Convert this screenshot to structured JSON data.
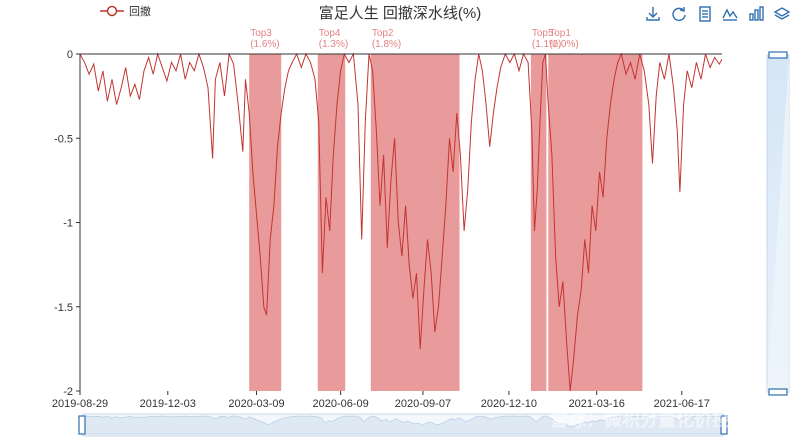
{
  "chart_data": {
    "type": "area",
    "title": "富足人生 回撤深水线(%)",
    "legend": [
      {
        "name": "回撤",
        "color": "#c23531"
      }
    ],
    "legend_position": "top-left",
    "xlabel": "",
    "ylabel": "",
    "x_ticks": [
      "2019-08-29",
      "2019-12-03",
      "2020-03-09",
      "2020-06-09",
      "2020-09-07",
      "2020-12-10",
      "2021-03-16",
      "2021-06-17"
    ],
    "y_ticks": [
      "0",
      "-0.5",
      "-1",
      "-1.5",
      "-2"
    ],
    "ylim": [
      -2,
      0
    ],
    "x_range": [
      "2019-08-29",
      "2021-07-31"
    ],
    "series": [
      {
        "name": "回撤",
        "color": "#c23531",
        "points": [
          [
            "2019-08-29",
            0
          ],
          [
            "2019-09-03",
            -0.05
          ],
          [
            "2019-09-08",
            -0.12
          ],
          [
            "2019-09-13",
            -0.06
          ],
          [
            "2019-09-18",
            -0.22
          ],
          [
            "2019-09-23",
            -0.1
          ],
          [
            "2019-09-28",
            -0.28
          ],
          [
            "2019-10-03",
            -0.15
          ],
          [
            "2019-10-08",
            -0.3
          ],
          [
            "2019-10-13",
            -0.2
          ],
          [
            "2019-10-18",
            -0.08
          ],
          [
            "2019-10-23",
            -0.25
          ],
          [
            "2019-10-28",
            -0.18
          ],
          [
            "2019-11-02",
            -0.27
          ],
          [
            "2019-11-07",
            -0.1
          ],
          [
            "2019-11-12",
            -0.02
          ],
          [
            "2019-11-17",
            -0.12
          ],
          [
            "2019-11-22",
            0
          ],
          [
            "2019-11-27",
            -0.08
          ],
          [
            "2019-12-02",
            -0.16
          ],
          [
            "2019-12-07",
            -0.05
          ],
          [
            "2019-12-12",
            -0.1
          ],
          [
            "2019-12-17",
            0
          ],
          [
            "2019-12-22",
            -0.15
          ],
          [
            "2019-12-27",
            -0.05
          ],
          [
            "2020-01-01",
            -0.1
          ],
          [
            "2020-01-06",
            0
          ],
          [
            "2020-01-11",
            -0.08
          ],
          [
            "2020-01-16",
            -0.2
          ],
          [
            "2020-01-21",
            -0.62
          ],
          [
            "2020-01-24",
            -0.15
          ],
          [
            "2020-01-29",
            -0.05
          ],
          [
            "2020-02-03",
            -0.25
          ],
          [
            "2020-02-08",
            0
          ],
          [
            "2020-02-13",
            -0.06
          ],
          [
            "2020-02-18",
            -0.3
          ],
          [
            "2020-02-23",
            -0.58
          ],
          [
            "2020-02-26",
            -0.15
          ],
          [
            "2020-03-01",
            -0.35
          ],
          [
            "2020-03-05",
            -0.7
          ],
          [
            "2020-03-09",
            -0.95
          ],
          [
            "2020-03-13",
            -1.2
          ],
          [
            "2020-03-17",
            -1.5
          ],
          [
            "2020-03-20",
            -1.55
          ],
          [
            "2020-03-24",
            -1.1
          ],
          [
            "2020-03-28",
            -0.9
          ],
          [
            "2020-04-01",
            -0.55
          ],
          [
            "2020-04-05",
            -0.35
          ],
          [
            "2020-04-09",
            -0.2
          ],
          [
            "2020-04-13",
            -0.1
          ],
          [
            "2020-04-17",
            -0.05
          ],
          [
            "2020-04-22",
            0
          ],
          [
            "2020-04-27",
            -0.08
          ],
          [
            "2020-05-02",
            0
          ],
          [
            "2020-05-07",
            -0.05
          ],
          [
            "2020-05-12",
            -0.15
          ],
          [
            "2020-05-16",
            -0.4
          ],
          [
            "2020-05-20",
            -1.3
          ],
          [
            "2020-05-24",
            -0.85
          ],
          [
            "2020-05-28",
            -1.05
          ],
          [
            "2020-06-01",
            -0.6
          ],
          [
            "2020-06-05",
            -0.3
          ],
          [
            "2020-06-09",
            -0.1
          ],
          [
            "2020-06-13",
            0
          ],
          [
            "2020-06-18",
            -0.05
          ],
          [
            "2020-06-23",
            0
          ],
          [
            "2020-06-28",
            -0.3
          ],
          [
            "2020-07-02",
            -1.1
          ],
          [
            "2020-07-06",
            -0.4
          ],
          [
            "2020-07-10",
            0
          ],
          [
            "2020-07-14",
            -0.1
          ],
          [
            "2020-07-18",
            -0.45
          ],
          [
            "2020-07-22",
            -0.9
          ],
          [
            "2020-07-26",
            -0.6
          ],
          [
            "2020-07-30",
            -1.15
          ],
          [
            "2020-08-03",
            -0.75
          ],
          [
            "2020-08-07",
            -0.5
          ],
          [
            "2020-08-11",
            -1.0
          ],
          [
            "2020-08-15",
            -1.2
          ],
          [
            "2020-08-19",
            -0.9
          ],
          [
            "2020-08-23",
            -1.25
          ],
          [
            "2020-08-27",
            -1.45
          ],
          [
            "2020-08-31",
            -1.3
          ],
          [
            "2020-09-04",
            -1.75
          ],
          [
            "2020-09-08",
            -1.4
          ],
          [
            "2020-09-12",
            -1.1
          ],
          [
            "2020-09-16",
            -1.3
          ],
          [
            "2020-09-20",
            -1.65
          ],
          [
            "2020-09-24",
            -1.5
          ],
          [
            "2020-09-28",
            -1.2
          ],
          [
            "2020-10-02",
            -0.9
          ],
          [
            "2020-10-06",
            -0.5
          ],
          [
            "2020-10-10",
            -0.7
          ],
          [
            "2020-10-14",
            -0.35
          ],
          [
            "2020-10-18",
            -0.6
          ],
          [
            "2020-10-22",
            -1.05
          ],
          [
            "2020-10-26",
            -0.8
          ],
          [
            "2020-10-30",
            -0.4
          ],
          [
            "2020-11-03",
            -0.15
          ],
          [
            "2020-11-07",
            0
          ],
          [
            "2020-11-11",
            -0.1
          ],
          [
            "2020-11-15",
            -0.3
          ],
          [
            "2020-11-19",
            -0.55
          ],
          [
            "2020-11-23",
            -0.35
          ],
          [
            "2020-11-27",
            -0.2
          ],
          [
            "2020-12-01",
            -0.08
          ],
          [
            "2020-12-06",
            0
          ],
          [
            "2020-12-11",
            -0.05
          ],
          [
            "2020-12-16",
            0
          ],
          [
            "2020-12-21",
            -0.1
          ],
          [
            "2020-12-26",
            0
          ],
          [
            "2020-12-31",
            -0.05
          ],
          [
            "2021-01-04",
            -0.45
          ],
          [
            "2021-01-07",
            -1.05
          ],
          [
            "2021-01-10",
            -0.8
          ],
          [
            "2021-01-13",
            -0.4
          ],
          [
            "2021-01-16",
            -0.05
          ],
          [
            "2021-01-19",
            0
          ],
          [
            "2021-01-22",
            -0.3
          ],
          [
            "2021-01-26",
            -0.6
          ],
          [
            "2021-01-30",
            -1.2
          ],
          [
            "2021-02-03",
            -1.5
          ],
          [
            "2021-02-07",
            -1.35
          ],
          [
            "2021-02-11",
            -1.7
          ],
          [
            "2021-02-15",
            -2.0
          ],
          [
            "2021-02-19",
            -1.8
          ],
          [
            "2021-02-23",
            -1.55
          ],
          [
            "2021-02-27",
            -1.4
          ],
          [
            "2021-03-03",
            -1.1
          ],
          [
            "2021-03-07",
            -1.3
          ],
          [
            "2021-03-11",
            -0.9
          ],
          [
            "2021-03-15",
            -1.05
          ],
          [
            "2021-03-19",
            -0.7
          ],
          [
            "2021-03-23",
            -0.85
          ],
          [
            "2021-03-27",
            -0.5
          ],
          [
            "2021-03-31",
            -0.3
          ],
          [
            "2021-04-04",
            -0.15
          ],
          [
            "2021-04-08",
            -0.05
          ],
          [
            "2021-04-12",
            0
          ],
          [
            "2021-04-17",
            -0.12
          ],
          [
            "2021-04-22",
            -0.05
          ],
          [
            "2021-04-27",
            -0.15
          ],
          [
            "2021-05-02",
            0
          ],
          [
            "2021-05-07",
            -0.1
          ],
          [
            "2021-05-12",
            -0.3
          ],
          [
            "2021-05-16",
            -0.65
          ],
          [
            "2021-05-20",
            -0.25
          ],
          [
            "2021-05-24",
            -0.05
          ],
          [
            "2021-05-29",
            -0.15
          ],
          [
            "2021-06-03",
            0
          ],
          [
            "2021-06-08",
            -0.2
          ],
          [
            "2021-06-12",
            -0.45
          ],
          [
            "2021-06-15",
            -0.82
          ],
          [
            "2021-06-19",
            -0.3
          ],
          [
            "2021-06-23",
            -0.1
          ],
          [
            "2021-06-28",
            -0.2
          ],
          [
            "2021-07-03",
            -0.05
          ],
          [
            "2021-07-08",
            -0.15
          ],
          [
            "2021-07-13",
            0
          ],
          [
            "2021-07-18",
            -0.08
          ],
          [
            "2021-07-23",
            -0.02
          ],
          [
            "2021-07-28",
            -0.06
          ],
          [
            "2021-07-31",
            -0.03
          ]
        ]
      }
    ],
    "bands": [
      {
        "label": "Top3",
        "sublabel": "(1.6%)",
        "start": "2020-03-01",
        "end": "2020-04-05"
      },
      {
        "label": "Top4",
        "sublabel": "(1.3%)",
        "start": "2020-05-15",
        "end": "2020-06-14"
      },
      {
        "label": "Top2",
        "sublabel": "(1.8%)",
        "start": "2020-07-12",
        "end": "2020-10-17"
      },
      {
        "label": "Top5",
        "sublabel": "(1.1%)",
        "start": "2021-01-03",
        "end": "2021-01-20"
      },
      {
        "label": "Top1",
        "sublabel": "(2.0%)",
        "start": "2021-01-22",
        "end": "2021-05-05"
      }
    ],
    "band_color": "#e58a8a",
    "grid": false
  },
  "toolbar": {
    "icons": [
      "download-icon",
      "refresh-icon",
      "data-view-icon",
      "line-chart-icon",
      "bar-chart-icon",
      "stack-icon"
    ],
    "color": "#2f6fb0"
  },
  "watermark": "雪球：微积分量化价投"
}
